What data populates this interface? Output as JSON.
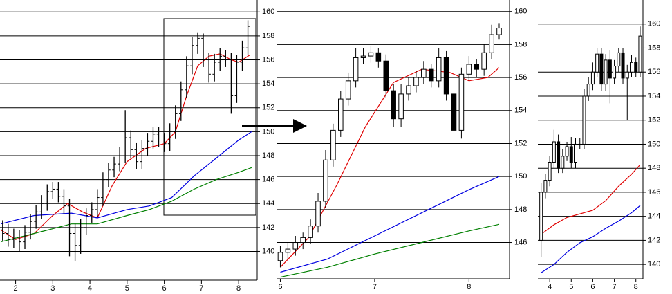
{
  "chart_data": [
    {
      "type": "ohlc",
      "x": [
        1.65,
        1.8,
        1.95,
        2.1,
        2.25,
        2.4,
        2.55,
        2.7,
        2.85,
        3.0,
        3.15,
        3.3,
        3.45,
        3.6,
        3.75,
        3.9,
        4.05,
        4.2,
        4.35,
        4.5,
        4.65,
        4.8,
        4.95,
        5.1,
        5.25,
        5.4,
        5.55,
        5.7,
        5.85,
        6.0,
        6.15,
        6.3,
        6.45,
        6.6,
        6.75,
        6.9,
        7.05,
        7.2,
        7.35,
        7.5,
        7.65,
        7.8,
        7.95,
        8.1,
        8.25
      ],
      "open": [
        141.8,
        141.5,
        141.0,
        141.2,
        140.8,
        141.6,
        142.5,
        143.3,
        144.0,
        145.0,
        145.2,
        144.6,
        143.8,
        141.5,
        140.5,
        142.0,
        143.0,
        143.5,
        144.5,
        146.0,
        146.8,
        147.3,
        148.0,
        149.5,
        148.5,
        147.5,
        148.6,
        149.2,
        149.8,
        149.3,
        149.0,
        150.0,
        151.5,
        153.5,
        155.5,
        157.2,
        157.8,
        156.0,
        154.8,
        155.8,
        156.3,
        156.0,
        153.0,
        155.8,
        157.0
      ],
      "high": [
        142.6,
        142.3,
        141.9,
        141.8,
        142.2,
        143.1,
        143.9,
        144.7,
        145.6,
        145.8,
        145.8,
        145.2,
        144.4,
        142.3,
        142.7,
        143.6,
        144.1,
        145.2,
        146.6,
        147.4,
        147.9,
        148.7,
        151.8,
        150.1,
        149.1,
        149.3,
        149.9,
        150.4,
        150.4,
        149.9,
        150.7,
        152.2,
        154.2,
        156.3,
        157.9,
        158.3,
        158.2,
        156.6,
        156.5,
        157.0,
        156.8,
        156.6,
        156.4,
        157.6,
        159.3
      ],
      "low": [
        140.9,
        140.4,
        140.3,
        140.0,
        140.2,
        141.0,
        141.9,
        142.7,
        143.4,
        144.4,
        144.1,
        143.1,
        139.6,
        139.2,
        139.8,
        141.4,
        142.4,
        142.9,
        143.8,
        145.4,
        146.2,
        146.7,
        147.4,
        147.8,
        146.9,
        146.9,
        148.0,
        148.6,
        148.7,
        148.3,
        148.4,
        149.4,
        150.9,
        152.8,
        154.8,
        156.5,
        155.4,
        154.1,
        154.2,
        155.1,
        155.4,
        151.5,
        152.4,
        155.1,
        156.4
      ],
      "close": [
        141.5,
        141.0,
        141.2,
        140.8,
        141.6,
        142.5,
        143.3,
        144.0,
        145.0,
        145.2,
        144.6,
        143.8,
        141.5,
        140.5,
        142.0,
        143.0,
        143.5,
        144.5,
        146.0,
        146.8,
        147.3,
        148.0,
        149.5,
        148.5,
        147.5,
        148.6,
        149.2,
        149.8,
        149.3,
        149.0,
        150.0,
        151.5,
        153.5,
        155.5,
        157.2,
        157.8,
        156.0,
        154.8,
        155.8,
        156.3,
        156.0,
        153.0,
        155.8,
        157.0,
        158.8
      ],
      "color": "#000000",
      "series": [
        {
          "color": "#e00000",
          "x": [
            1.6,
            2.0,
            2.5,
            3.0,
            3.4,
            3.8,
            4.2,
            4.6,
            5.0,
            5.5,
            6.0,
            6.3,
            6.6,
            6.9,
            7.2,
            7.5,
            7.8,
            8.0,
            8.3
          ],
          "values": [
            141.8,
            141.0,
            141.5,
            143.0,
            144.0,
            143.3,
            142.8,
            145.5,
            147.5,
            148.6,
            149.0,
            150.0,
            153.0,
            155.5,
            156.3,
            156.5,
            156.0,
            155.8,
            156.4
          ]
        },
        {
          "color": "#0000e0",
          "x": [
            1.6,
            2.5,
            3.5,
            4.2,
            5.0,
            5.6,
            6.2,
            6.8,
            7.4,
            8.0,
            8.35
          ],
          "values": [
            142.3,
            143.0,
            143.2,
            142.8,
            143.5,
            143.8,
            144.5,
            146.3,
            147.8,
            149.3,
            150.0
          ]
        },
        {
          "color": "#008000",
          "x": [
            1.6,
            2.5,
            3.5,
            4.2,
            5.0,
            5.6,
            6.2,
            6.8,
            7.4,
            8.0,
            8.35
          ],
          "values": [
            140.8,
            141.5,
            142.3,
            142.3,
            143.0,
            143.5,
            144.2,
            145.2,
            146.0,
            146.6,
            147.0
          ]
        }
      ],
      "xlim": [
        1.58,
        8.5
      ],
      "xticks": [
        2,
        3,
        4,
        5,
        6,
        7,
        8
      ],
      "ylim": [
        137.6,
        161.0
      ],
      "yticks": [
        140,
        142,
        144,
        146,
        148,
        150,
        152,
        154,
        156,
        158,
        160
      ],
      "grid": true
    },
    {
      "type": "candlestick",
      "x": [
        6.0,
        6.08,
        6.16,
        6.24,
        6.32,
        6.4,
        6.48,
        6.56,
        6.64,
        6.72,
        6.8,
        6.88,
        6.96,
        7.04,
        7.12,
        7.2,
        7.28,
        7.36,
        7.44,
        7.52,
        7.6,
        7.68,
        7.76,
        7.84,
        7.92,
        8.0,
        8.08,
        8.16,
        8.24,
        8.32
      ],
      "open": [
        144.9,
        145.4,
        145.6,
        146.0,
        146.3,
        147.0,
        148.5,
        151.0,
        152.8,
        154.7,
        155.8,
        157.2,
        157.3,
        157.5,
        157.0,
        155.2,
        153.5,
        155.0,
        155.5,
        156.0,
        156.5,
        155.8,
        157.2,
        155.0,
        152.8,
        156.2,
        156.8,
        156.5,
        157.5,
        158.6
      ],
      "high": [
        145.8,
        146.0,
        146.4,
        146.6,
        147.4,
        149.0,
        151.6,
        153.2,
        155.2,
        156.3,
        157.8,
        157.8,
        157.9,
        157.8,
        157.4,
        155.6,
        155.6,
        156.0,
        156.4,
        157.0,
        156.8,
        157.8,
        157.6,
        155.4,
        156.6,
        157.3,
        157.1,
        158.0,
        159.2,
        159.3
      ],
      "low": [
        144.5,
        145.0,
        145.2,
        145.6,
        145.9,
        146.6,
        148.1,
        150.6,
        152.4,
        154.3,
        155.4,
        156.8,
        156.9,
        156.6,
        154.8,
        153.0,
        153.0,
        154.6,
        155.1,
        155.6,
        155.4,
        155.4,
        154.6,
        151.6,
        152.3,
        155.8,
        156.0,
        156.1,
        157.1,
        158.3
      ],
      "close": [
        145.4,
        145.6,
        146.0,
        146.3,
        147.0,
        148.5,
        151.0,
        152.8,
        154.7,
        155.8,
        157.2,
        157.3,
        157.5,
        157.0,
        155.2,
        153.5,
        155.0,
        155.5,
        156.0,
        156.5,
        155.8,
        157.2,
        155.0,
        152.8,
        156.2,
        156.8,
        156.5,
        157.5,
        158.6,
        159.0
      ],
      "color": "#000000",
      "series": [
        {
          "color": "#e00000",
          "x": [
            6.0,
            6.3,
            6.6,
            6.9,
            7.2,
            7.5,
            7.8,
            8.0,
            8.2,
            8.32
          ],
          "values": [
            144.5,
            146.3,
            149.5,
            153.0,
            155.7,
            156.5,
            156.3,
            155.8,
            156.0,
            156.6
          ]
        },
        {
          "color": "#0000e0",
          "x": [
            6.0,
            6.5,
            7.0,
            7.5,
            8.0,
            8.32
          ],
          "values": [
            144.2,
            145.0,
            146.4,
            147.8,
            149.2,
            150.0
          ]
        },
        {
          "color": "#008000",
          "x": [
            6.0,
            6.5,
            7.0,
            7.5,
            8.0,
            8.32
          ],
          "values": [
            143.9,
            144.5,
            145.3,
            146.0,
            146.7,
            147.1
          ]
        }
      ],
      "xlim": [
        5.96,
        8.43
      ],
      "xticks": [
        6,
        7,
        8
      ],
      "ylim": [
        143.8,
        160.7
      ],
      "yticks": [
        146,
        148,
        150,
        152,
        154,
        156,
        158,
        160
      ],
      "grid": true
    },
    {
      "type": "candlestick",
      "x": [
        3.6,
        3.8,
        4.0,
        4.2,
        4.4,
        4.6,
        4.8,
        5.0,
        5.2,
        5.4,
        5.6,
        5.8,
        6.0,
        6.2,
        6.4,
        6.6,
        6.8,
        7.0,
        7.2,
        7.4,
        7.6,
        7.8,
        8.0,
        8.2
      ],
      "open": [
        142.0,
        146.0,
        147.0,
        148.5,
        150.2,
        148.0,
        149.0,
        149.8,
        148.5,
        150.0,
        150.0,
        154.0,
        155.0,
        156.0,
        157.5,
        155.0,
        157.0,
        155.5,
        156.5,
        157.6,
        155.5,
        156.0,
        156.8,
        156.0
      ],
      "high": [
        146.8,
        147.5,
        149.0,
        151.2,
        150.8,
        149.6,
        150.2,
        150.6,
        150.5,
        150.5,
        154.6,
        155.6,
        156.8,
        158.0,
        158.0,
        157.5,
        157.8,
        157.0,
        158.0,
        158.0,
        156.6,
        157.4,
        157.2,
        159.8
      ],
      "low": [
        140.6,
        145.5,
        146.5,
        148.0,
        147.6,
        147.6,
        148.6,
        148.0,
        148.0,
        149.6,
        149.6,
        153.6,
        154.5,
        155.6,
        154.4,
        154.4,
        153.4,
        155.0,
        156.0,
        155.0,
        152.0,
        155.6,
        155.6,
        155.6
      ],
      "close": [
        146.0,
        147.0,
        148.5,
        150.2,
        148.0,
        149.0,
        149.8,
        148.5,
        150.0,
        150.0,
        154.0,
        155.0,
        156.0,
        157.5,
        155.0,
        157.0,
        155.5,
        156.5,
        157.6,
        155.5,
        156.0,
        156.8,
        156.0,
        159.0
      ],
      "color": "#000000",
      "series": [
        {
          "color": "#e00000",
          "x": [
            3.6,
            4.2,
            4.8,
            5.4,
            6.0,
            6.6,
            7.2,
            7.8,
            8.2
          ],
          "values": [
            142.5,
            143.3,
            143.9,
            144.2,
            144.5,
            145.3,
            146.5,
            147.5,
            148.3
          ]
        },
        {
          "color": "#0000e0",
          "x": [
            3.6,
            4.2,
            4.8,
            5.4,
            6.0,
            6.6,
            7.2,
            7.8,
            8.2
          ],
          "values": [
            139.3,
            140.0,
            141.0,
            141.8,
            142.3,
            143.0,
            143.6,
            144.3,
            144.9
          ]
        }
      ],
      "xlim": [
        3.45,
        8.33
      ],
      "xticks": [
        4,
        5,
        6,
        7,
        8
      ],
      "ylim": [
        138.8,
        162.0
      ],
      "yticks": [
        140,
        142,
        144,
        146,
        148,
        150,
        152,
        154,
        156,
        158,
        160
      ],
      "grid": true
    }
  ]
}
